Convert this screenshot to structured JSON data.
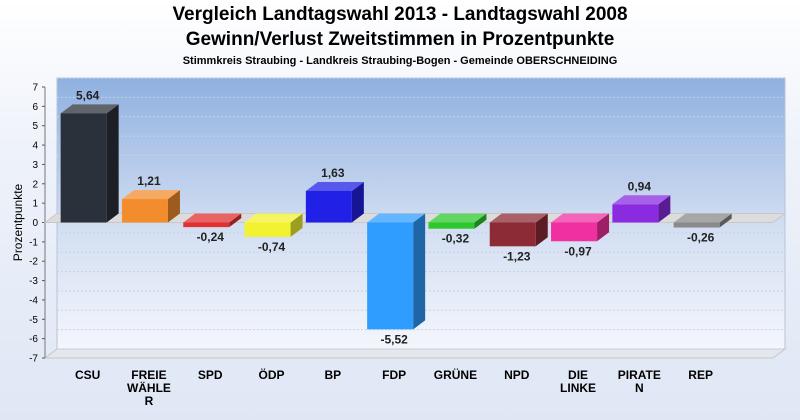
{
  "chart_data": {
    "type": "bar",
    "title": "Vergleich Landtagswahl 2013 - Landtagswahl 2008",
    "subtitle": "Gewinn/Verlust Zweitstimmen in Prozentpunkte",
    "caption": "Stimmkreis Straubing - Landkreis Straubing-Bogen - Gemeinde OBERSCHNEIDING",
    "ylabel": "Prozentpunkte",
    "xlabel": "",
    "ylim": [
      -7,
      7
    ],
    "yticks": [
      7,
      6,
      5,
      4,
      3,
      2,
      1,
      0,
      -1,
      -2,
      -3,
      -4,
      -5,
      -6,
      -7
    ],
    "grid": true,
    "legend": "none",
    "categories": [
      [
        "CSU"
      ],
      [
        "FREIE",
        "WÄHLE",
        "R"
      ],
      [
        "SPD"
      ],
      [
        "ÖDP"
      ],
      [
        "BP"
      ],
      [
        "FDP"
      ],
      [
        "GRÜNE"
      ],
      [
        "NPD"
      ],
      [
        "DIE",
        "LINKE"
      ],
      [
        "PIRATE",
        "N"
      ],
      [
        "REP"
      ]
    ],
    "values": [
      5.64,
      1.21,
      -0.24,
      -0.74,
      1.63,
      -5.52,
      -0.32,
      -1.23,
      -0.97,
      0.94,
      -0.26
    ],
    "value_labels": [
      "5,64",
      "1,21",
      "-0,24",
      "-0,74",
      "1,63",
      "-5,52",
      "-0,32",
      "-1,23",
      "-0,97",
      "0,94",
      "-0,26"
    ],
    "colors": [
      "#2b313b",
      "#f28c2c",
      "#e03030",
      "#f2f230",
      "#2020e6",
      "#2f9dff",
      "#2ec82e",
      "#8c2b36",
      "#f030a0",
      "#8a2be2",
      "#8a8a8a"
    ]
  }
}
